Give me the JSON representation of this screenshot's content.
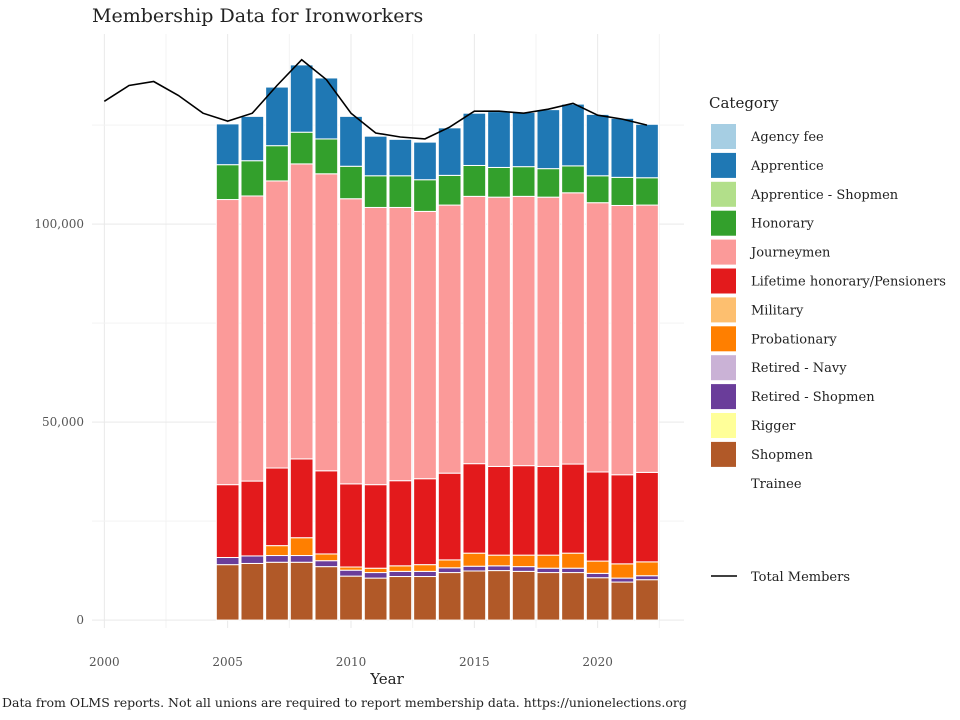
{
  "chart_data": {
    "type": "bar",
    "title": "Membership Data for Ironworkers",
    "xlabel": "Year",
    "ylabel": "",
    "caption": "Data from OLMS reports. Not all unions are required to report membership data. https://unionelections.org",
    "legend_title": "Category",
    "legend_position": "right",
    "grid": true,
    "xlim": [
      1999.5,
      2023.5
    ],
    "ylim": [
      -2000,
      148000
    ],
    "x_ticks": [
      2000,
      2005,
      2010,
      2015,
      2020
    ],
    "y_ticks": [
      0,
      50000,
      100000
    ],
    "y_tick_labels": [
      "0",
      "50,000",
      "100,000"
    ],
    "categories": [
      2005,
      2006,
      2007,
      2008,
      2009,
      2010,
      2011,
      2012,
      2013,
      2014,
      2015,
      2016,
      2017,
      2018,
      2019,
      2020,
      2021,
      2022
    ],
    "series": [
      {
        "name": "Shopmen",
        "color": "#b15928",
        "values": [
          14000,
          14300,
          14600,
          14600,
          13500,
          11100,
          10600,
          11000,
          11000,
          12000,
          12400,
          12500,
          12300,
          12000,
          12000,
          10700,
          9600,
          10200
        ]
      },
      {
        "name": "Rigger",
        "color": "#ffff99",
        "values": [
          0,
          0,
          0,
          0,
          0,
          0,
          0,
          0,
          0,
          0,
          0,
          0,
          0,
          0,
          0,
          0,
          0,
          0
        ]
      },
      {
        "name": "Retired - Shopmen",
        "color": "#6a3d9a",
        "values": [
          1800,
          1900,
          1700,
          1700,
          1500,
          1500,
          1400,
          1300,
          1300,
          1200,
          1200,
          1200,
          1200,
          1100,
          1100,
          1100,
          1000,
          1000
        ]
      },
      {
        "name": "Retired - Navy",
        "color": "#cab2d6",
        "values": [
          0,
          0,
          0,
          0,
          0,
          0,
          0,
          0,
          0,
          0,
          0,
          0,
          0,
          0,
          0,
          0,
          0,
          0
        ]
      },
      {
        "name": "Probationary",
        "color": "#ff7f00",
        "values": [
          0,
          0,
          2500,
          4500,
          1700,
          800,
          1100,
          1400,
          1700,
          2000,
          3300,
          2700,
          2900,
          3300,
          3800,
          3100,
          3600,
          3500
        ]
      },
      {
        "name": "Military",
        "color": "#fdbf6f",
        "values": [
          0,
          0,
          0,
          0,
          0,
          0,
          0,
          0,
          0,
          0,
          0,
          0,
          0,
          0,
          0,
          0,
          0,
          0
        ]
      },
      {
        "name": "Lifetime honorary/Pensioners",
        "color": "#e31a1c",
        "values": [
          18400,
          18900,
          19600,
          19900,
          21000,
          21000,
          21100,
          21500,
          21700,
          21900,
          22600,
          22400,
          22600,
          22400,
          22500,
          22500,
          22500,
          22600
        ]
      },
      {
        "name": "Journeymen",
        "color": "#fb9a99",
        "values": [
          72000,
          72000,
          72500,
          74500,
          75000,
          72000,
          70000,
          69000,
          67500,
          67700,
          67500,
          68000,
          68000,
          68000,
          68500,
          68000,
          68000,
          67500
        ]
      },
      {
        "name": "Honorary",
        "color": "#33a02c",
        "values": [
          8800,
          8900,
          8900,
          8000,
          8800,
          8200,
          8000,
          8000,
          8000,
          7500,
          7800,
          7500,
          7500,
          7200,
          6800,
          6800,
          7100,
          6900
        ]
      },
      {
        "name": "Apprentice - Shopmen",
        "color": "#b2df8a",
        "values": [
          0,
          0,
          0,
          0,
          0,
          0,
          0,
          0,
          0,
          0,
          0,
          0,
          0,
          0,
          0,
          0,
          0,
          0
        ]
      },
      {
        "name": "Apprentice",
        "color": "#1f78b4",
        "values": [
          10300,
          11200,
          14800,
          17000,
          15400,
          12600,
          10000,
          9200,
          9500,
          12000,
          13200,
          14100,
          13700,
          14900,
          15600,
          15500,
          14900,
          13500
        ]
      },
      {
        "name": "Agency fee",
        "color": "#a6cee3",
        "values": [
          0,
          0,
          0,
          0,
          0,
          0,
          0,
          0,
          0,
          0,
          0,
          0,
          0,
          0,
          0,
          0,
          0,
          0
        ]
      },
      {
        "name": "Trainee",
        "color": "#ffffff",
        "values": [
          0,
          0,
          0,
          0,
          0,
          0,
          0,
          0,
          0,
          0,
          0,
          0,
          0,
          0,
          0,
          0,
          0,
          0
        ]
      }
    ],
    "legend_order": [
      "Agency fee",
      "Apprentice",
      "Apprentice - Shopmen",
      "Honorary",
      "Journeymen",
      "Lifetime honorary/Pensioners",
      "Military",
      "Probationary",
      "Retired - Navy",
      "Retired - Shopmen",
      "Rigger",
      "Shopmen",
      "Trainee"
    ],
    "total_line": {
      "name": "Total Members",
      "color": "#000000",
      "x": [
        2000,
        2001,
        2002,
        2003,
        2004,
        2005,
        2006,
        2007,
        2008,
        2009,
        2010,
        2011,
        2012,
        2013,
        2014,
        2015,
        2016,
        2017,
        2018,
        2019,
        2020,
        2021,
        2022
      ],
      "y": [
        131000,
        135000,
        136000,
        132500,
        128000,
        126000,
        128000,
        135000,
        141500,
        136500,
        128000,
        123000,
        122000,
        121500,
        124500,
        128500,
        128500,
        128000,
        129000,
        130500,
        127500,
        126500,
        125000
      ]
    }
  }
}
